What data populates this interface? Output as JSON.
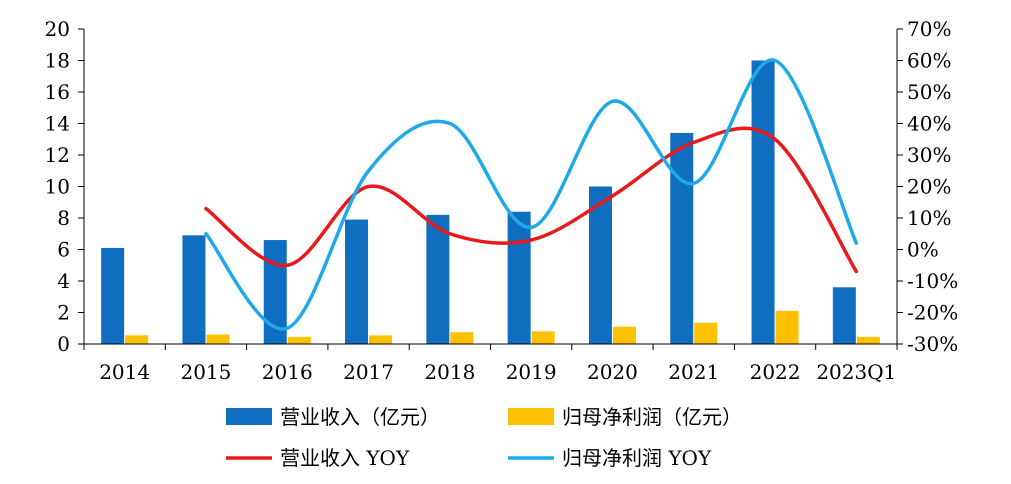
{
  "chart_data": {
    "type": "bar",
    "categories": [
      "2014",
      "2015",
      "2016",
      "2017",
      "2018",
      "2019",
      "2020",
      "2021",
      "2022",
      "2023Q1"
    ],
    "left_axis": {
      "ticks": [
        "0",
        "2",
        "4",
        "6",
        "8",
        "10",
        "12",
        "14",
        "16",
        "18",
        "20"
      ],
      "ylim": [
        0,
        20
      ]
    },
    "right_axis": {
      "ticks": [
        "-30%",
        "-20%",
        "-10%",
        "0%",
        "10%",
        "20%",
        "30%",
        "40%",
        "50%",
        "60%",
        "70%"
      ],
      "ylim": [
        -30,
        70
      ]
    },
    "series": [
      {
        "name": "营业收入（亿元）",
        "kind": "bar",
        "axis": "left",
        "color": "#0f6ec0",
        "values": [
          6.1,
          6.9,
          6.6,
          7.9,
          8.2,
          8.4,
          10.0,
          13.4,
          18.0,
          3.6
        ]
      },
      {
        "name": "归母净利润（亿元）",
        "kind": "bar",
        "axis": "left",
        "color": "#ffc000",
        "values": [
          0.55,
          0.6,
          0.45,
          0.55,
          0.75,
          0.8,
          1.1,
          1.35,
          2.1,
          0.45
        ]
      },
      {
        "name": "营业收入 YOY",
        "kind": "line",
        "axis": "right",
        "color": "#e8191b",
        "values": [
          null,
          13,
          -5,
          20,
          5,
          3,
          17,
          34,
          35,
          -7
        ]
      },
      {
        "name": "归母净利润 YOY",
        "kind": "line",
        "axis": "right",
        "color": "#1fa9e8",
        "values": [
          null,
          5,
          -25,
          25,
          40,
          7,
          47,
          21,
          60,
          2
        ]
      }
    ],
    "legend": "bottom",
    "grid": false
  }
}
